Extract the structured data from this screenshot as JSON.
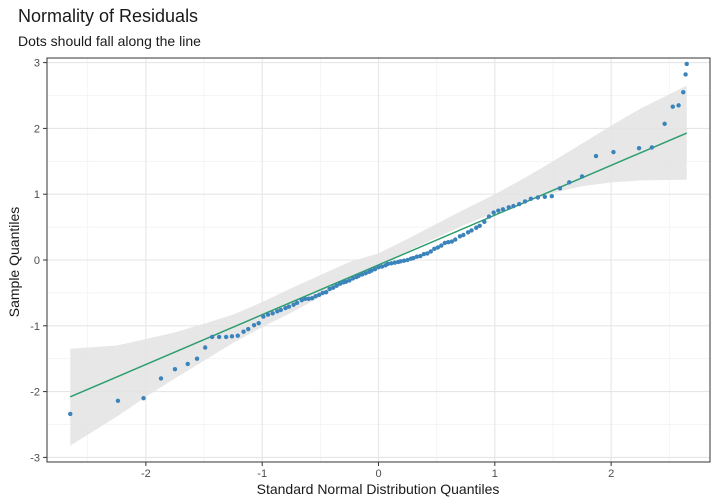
{
  "chart_data": {
    "type": "scatter",
    "title": "Normality of Residuals",
    "subtitle": "Dots should fall along the line",
    "xlabel": "Standard Normal Distribution Quantiles",
    "ylabel": "Sample Quantiles",
    "xlim": [
      -2.85,
      2.85
    ],
    "ylim": [
      -3.07,
      3.07
    ],
    "x_ticks": [
      -2,
      -1,
      0,
      1,
      2
    ],
    "x_tick_labels": [
      "-2",
      "-1",
      "0",
      "1",
      "2"
    ],
    "y_ticks": [
      -3,
      -2,
      -1,
      0,
      1,
      2,
      3
    ],
    "y_tick_labels": [
      "-3",
      "-2",
      "-1",
      "0",
      "1",
      "2",
      "3"
    ],
    "grid": true,
    "legend": "none",
    "colors": {
      "points": "#3a84bb",
      "line": "#2e9e6e",
      "band": "#e3e3e3",
      "panel_border": "#333333",
      "grid_major": "#e6e6e6",
      "grid_minor": "#f2f2f2"
    },
    "reference_line": {
      "x": [
        -2.65,
        2.65
      ],
      "y": [
        -2.08,
        1.93
      ]
    },
    "confidence_band": {
      "x": [
        -2.65,
        -2.25,
        -2.0,
        -1.75,
        -1.5,
        -1.25,
        -1.0,
        -0.75,
        -0.5,
        -0.25,
        0.0,
        0.25,
        0.5,
        0.75,
        1.0,
        1.25,
        1.5,
        1.75,
        2.0,
        2.25,
        2.65
      ],
      "lower": [
        -2.82,
        -2.38,
        -2.08,
        -1.8,
        -1.53,
        -1.26,
        -1.02,
        -0.8,
        -0.56,
        -0.32,
        -0.09,
        0.13,
        0.34,
        0.54,
        0.72,
        0.88,
        1.02,
        1.12,
        1.18,
        1.21,
        1.22
      ],
      "upper": [
        -1.35,
        -1.3,
        -1.2,
        -1.1,
        -0.97,
        -0.83,
        -0.64,
        -0.43,
        -0.23,
        -0.03,
        0.1,
        0.32,
        0.55,
        0.78,
        1.0,
        1.24,
        1.5,
        1.77,
        2.04,
        2.3,
        2.65
      ]
    },
    "points": [
      {
        "x": -2.65,
        "y": -2.34
      },
      {
        "x": -2.24,
        "y": -2.14
      },
      {
        "x": -2.02,
        "y": -2.1
      },
      {
        "x": -1.87,
        "y": -1.8
      },
      {
        "x": -1.75,
        "y": -1.66
      },
      {
        "x": -1.64,
        "y": -1.58
      },
      {
        "x": -1.56,
        "y": -1.5
      },
      {
        "x": -1.49,
        "y": -1.33
      },
      {
        "x": -1.43,
        "y": -1.17
      },
      {
        "x": -1.37,
        "y": -1.17
      },
      {
        "x": -1.31,
        "y": -1.17
      },
      {
        "x": -1.26,
        "y": -1.16
      },
      {
        "x": -1.21,
        "y": -1.15
      },
      {
        "x": -1.16,
        "y": -1.09
      },
      {
        "x": -1.12,
        "y": -1.05
      },
      {
        "x": -1.07,
        "y": -0.99
      },
      {
        "x": -1.03,
        "y": -0.96
      },
      {
        "x": -0.99,
        "y": -0.86
      },
      {
        "x": -0.95,
        "y": -0.83
      },
      {
        "x": -0.91,
        "y": -0.81
      },
      {
        "x": -0.87,
        "y": -0.78
      },
      {
        "x": -0.84,
        "y": -0.76
      },
      {
        "x": -0.8,
        "y": -0.73
      },
      {
        "x": -0.77,
        "y": -0.71
      },
      {
        "x": -0.73,
        "y": -0.68
      },
      {
        "x": -0.7,
        "y": -0.65
      },
      {
        "x": -0.66,
        "y": -0.61
      },
      {
        "x": -0.63,
        "y": -0.59
      },
      {
        "x": -0.6,
        "y": -0.59
      },
      {
        "x": -0.57,
        "y": -0.58
      },
      {
        "x": -0.54,
        "y": -0.55
      },
      {
        "x": -0.51,
        "y": -0.53
      },
      {
        "x": -0.48,
        "y": -0.5
      },
      {
        "x": -0.45,
        "y": -0.49
      },
      {
        "x": -0.42,
        "y": -0.44
      },
      {
        "x": -0.39,
        "y": -0.42
      },
      {
        "x": -0.36,
        "y": -0.39
      },
      {
        "x": -0.33,
        "y": -0.36
      },
      {
        "x": -0.3,
        "y": -0.34
      },
      {
        "x": -0.28,
        "y": -0.33
      },
      {
        "x": -0.25,
        "y": -0.31
      },
      {
        "x": -0.22,
        "y": -0.28
      },
      {
        "x": -0.19,
        "y": -0.26
      },
      {
        "x": -0.17,
        "y": -0.24
      },
      {
        "x": -0.14,
        "y": -0.22
      },
      {
        "x": -0.11,
        "y": -0.2
      },
      {
        "x": -0.08,
        "y": -0.18
      },
      {
        "x": -0.06,
        "y": -0.16
      },
      {
        "x": -0.03,
        "y": -0.14
      },
      {
        "x": 0.0,
        "y": -0.11
      },
      {
        "x": 0.03,
        "y": -0.1
      },
      {
        "x": 0.06,
        "y": -0.08
      },
      {
        "x": 0.08,
        "y": -0.06
      },
      {
        "x": 0.11,
        "y": -0.05
      },
      {
        "x": 0.14,
        "y": -0.04
      },
      {
        "x": 0.17,
        "y": -0.03
      },
      {
        "x": 0.19,
        "y": -0.02
      },
      {
        "x": 0.22,
        "y": -0.01
      },
      {
        "x": 0.25,
        "y": 0.0
      },
      {
        "x": 0.28,
        "y": 0.02
      },
      {
        "x": 0.3,
        "y": 0.03
      },
      {
        "x": 0.33,
        "y": 0.05
      },
      {
        "x": 0.36,
        "y": 0.06
      },
      {
        "x": 0.39,
        "y": 0.09
      },
      {
        "x": 0.42,
        "y": 0.1
      },
      {
        "x": 0.45,
        "y": 0.13
      },
      {
        "x": 0.48,
        "y": 0.17
      },
      {
        "x": 0.51,
        "y": 0.19
      },
      {
        "x": 0.54,
        "y": 0.22
      },
      {
        "x": 0.57,
        "y": 0.26
      },
      {
        "x": 0.6,
        "y": 0.27
      },
      {
        "x": 0.63,
        "y": 0.28
      },
      {
        "x": 0.66,
        "y": 0.31
      },
      {
        "x": 0.7,
        "y": 0.36
      },
      {
        "x": 0.73,
        "y": 0.38
      },
      {
        "x": 0.77,
        "y": 0.42
      },
      {
        "x": 0.8,
        "y": 0.45
      },
      {
        "x": 0.84,
        "y": 0.49
      },
      {
        "x": 0.87,
        "y": 0.52
      },
      {
        "x": 0.91,
        "y": 0.58
      },
      {
        "x": 0.95,
        "y": 0.66
      },
      {
        "x": 0.99,
        "y": 0.72
      },
      {
        "x": 1.03,
        "y": 0.75
      },
      {
        "x": 1.07,
        "y": 0.77
      },
      {
        "x": 1.12,
        "y": 0.8
      },
      {
        "x": 1.16,
        "y": 0.82
      },
      {
        "x": 1.21,
        "y": 0.85
      },
      {
        "x": 1.26,
        "y": 0.89
      },
      {
        "x": 1.31,
        "y": 0.93
      },
      {
        "x": 1.37,
        "y": 0.95
      },
      {
        "x": 1.43,
        "y": 0.96
      },
      {
        "x": 1.49,
        "y": 0.97
      },
      {
        "x": 1.56,
        "y": 1.09
      },
      {
        "x": 1.64,
        "y": 1.18
      },
      {
        "x": 1.75,
        "y": 1.27
      },
      {
        "x": 1.87,
        "y": 1.58
      },
      {
        "x": 2.02,
        "y": 1.64
      },
      {
        "x": 2.24,
        "y": 1.7
      },
      {
        "x": 2.35,
        "y": 1.71
      },
      {
        "x": 2.46,
        "y": 2.07
      },
      {
        "x": 2.53,
        "y": 2.33
      },
      {
        "x": 2.58,
        "y": 2.35
      },
      {
        "x": 2.62,
        "y": 2.55
      },
      {
        "x": 2.64,
        "y": 2.82
      },
      {
        "x": 2.65,
        "y": 2.98
      }
    ]
  }
}
